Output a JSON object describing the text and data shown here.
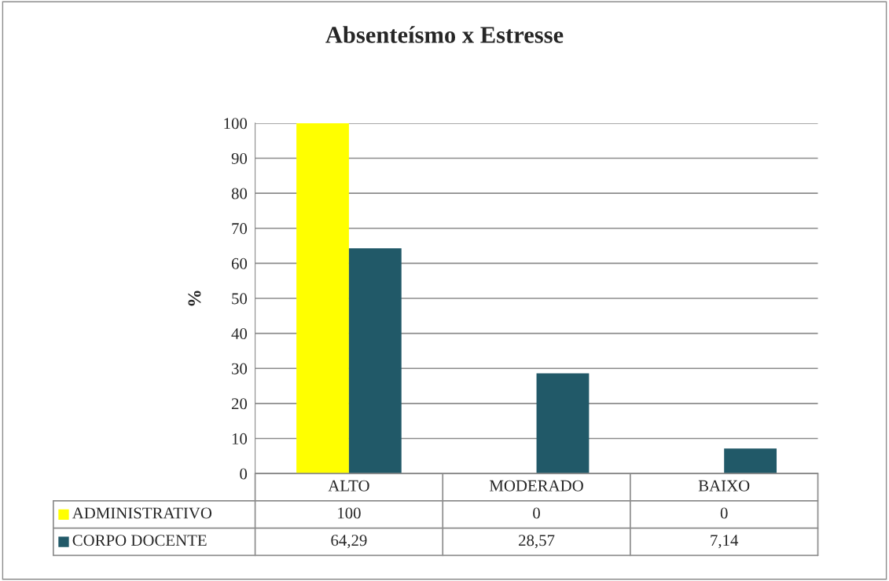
{
  "chart_data": {
    "type": "bar",
    "title": "Absenteísmo x Estresse",
    "ylabel": "%",
    "categories": [
      "ALTO",
      "MODERADO",
      "BAIXO"
    ],
    "series": [
      {
        "name": "ADMINISTRATIVO",
        "color": "#ffff00",
        "values": [
          100,
          0,
          0
        ],
        "value_labels": [
          "100",
          "0",
          "0"
        ]
      },
      {
        "name": "CORPO DOCENTE",
        "color": "#215968",
        "values": [
          64.29,
          28.57,
          7.14
        ],
        "value_labels": [
          "64,29",
          "28,57",
          "7,14"
        ]
      }
    ],
    "ylim": [
      0,
      100
    ],
    "yticks": [
      0,
      10,
      20,
      30,
      40,
      50,
      60,
      70,
      80,
      90,
      100
    ],
    "grid": "y",
    "legend": "bottom"
  }
}
